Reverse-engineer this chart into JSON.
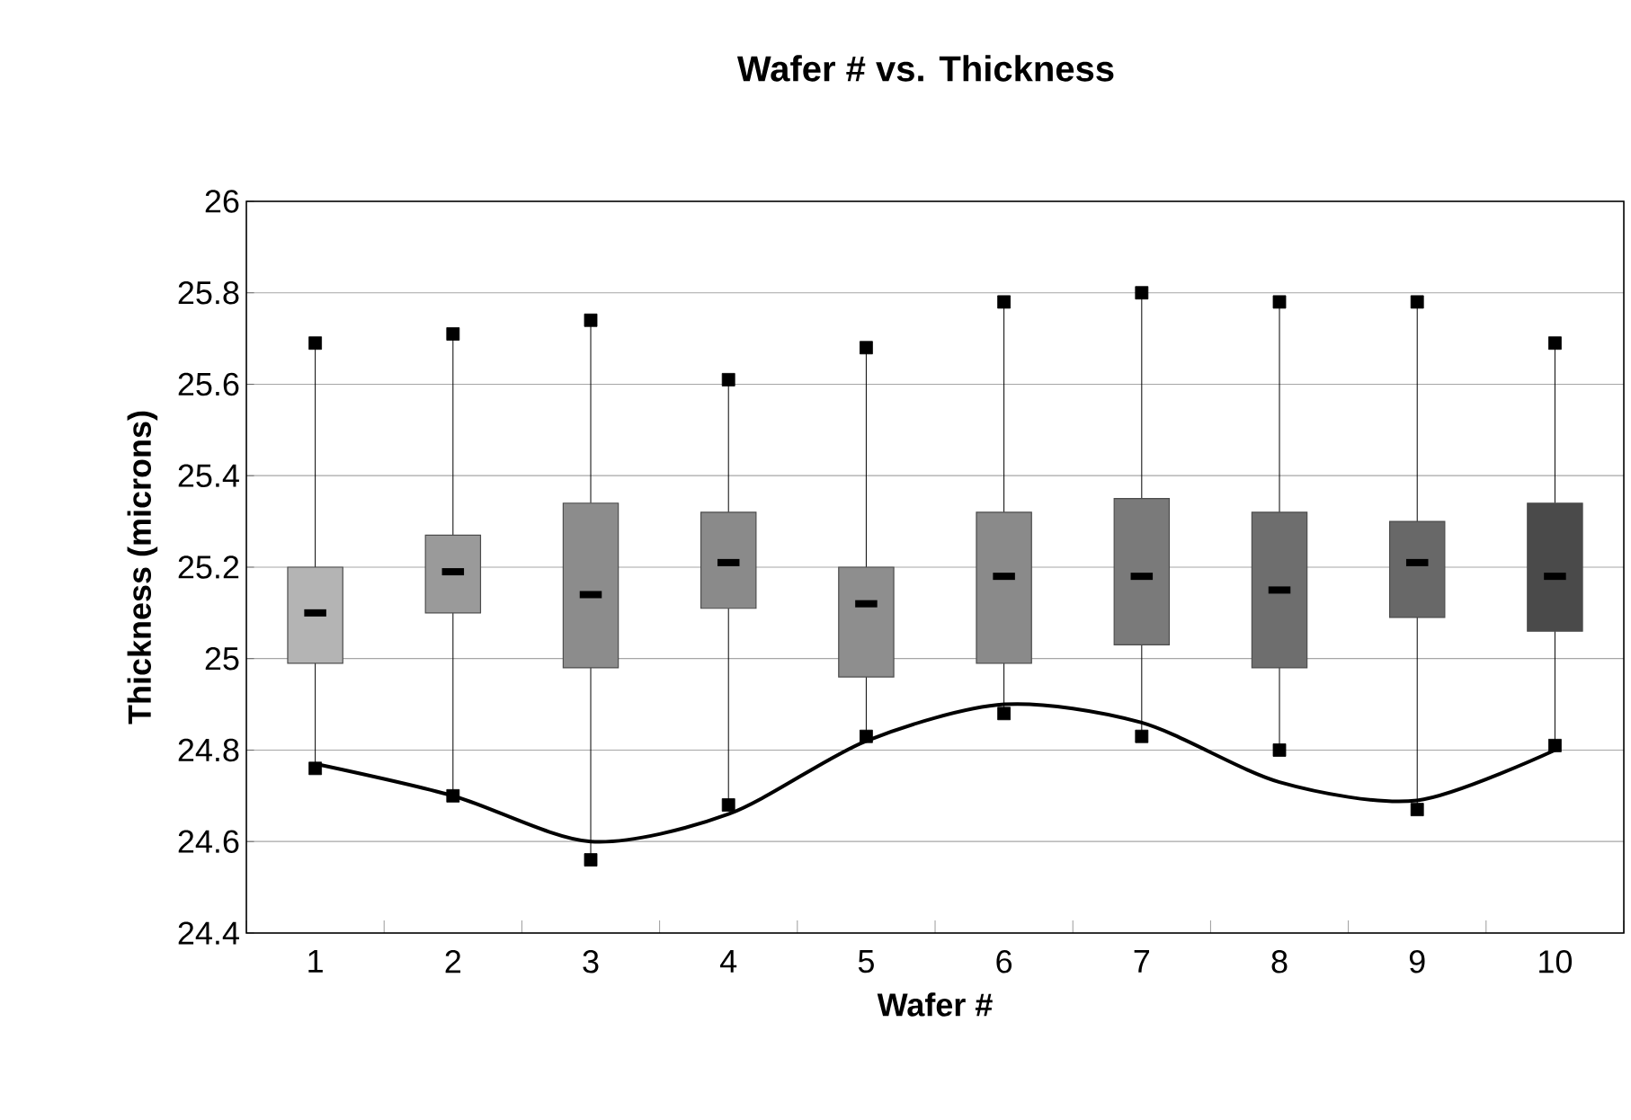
{
  "chart_data": {
    "type": "box",
    "title": "Wafer # vs. Thickness",
    "xlabel": "Wafer #",
    "ylabel": "Thickness (microns)",
    "categories": [
      "1",
      "2",
      "3",
      "4",
      "5",
      "6",
      "7",
      "8",
      "9",
      "10"
    ],
    "ylim": [
      24.4,
      26
    ],
    "yticks": [
      24.4,
      24.6,
      24.8,
      25,
      25.2,
      25.4,
      25.6,
      25.8,
      26
    ],
    "grid": "y",
    "series": [
      {
        "colors": [
          "#b4b4b4",
          "#9a9a9a",
          "#8c8c8c",
          "#8a8a8a",
          "#8e8e8e",
          "#8a8a8a",
          "#7a7a7a",
          "#6e6e6e",
          "#686868",
          "#4a4a4a"
        ],
        "boxes": [
          {
            "low": 24.76,
            "q1": 24.99,
            "median": 25.1,
            "q3": 25.2,
            "high": 25.69
          },
          {
            "low": 24.7,
            "q1": 25.1,
            "median": 25.19,
            "q3": 25.27,
            "high": 25.71
          },
          {
            "low": 24.56,
            "q1": 24.98,
            "median": 25.14,
            "q3": 25.34,
            "high": 25.74
          },
          {
            "low": 24.68,
            "q1": 25.11,
            "median": 25.21,
            "q3": 25.32,
            "high": 25.61
          },
          {
            "low": 24.83,
            "q1": 24.96,
            "median": 25.12,
            "q3": 25.2,
            "high": 25.68
          },
          {
            "low": 24.88,
            "q1": 24.99,
            "median": 25.18,
            "q3": 25.32,
            "high": 25.78
          },
          {
            "low": 24.83,
            "q1": 25.03,
            "median": 25.18,
            "q3": 25.35,
            "high": 25.8
          },
          {
            "low": 24.8,
            "q1": 24.98,
            "median": 25.15,
            "q3": 25.32,
            "high": 25.78
          },
          {
            "low": 24.67,
            "q1": 25.09,
            "median": 25.21,
            "q3": 25.3,
            "high": 25.78
          },
          {
            "low": 24.81,
            "q1": 25.06,
            "median": 25.18,
            "q3": 25.34,
            "high": 25.69
          }
        ]
      },
      {
        "type": "scatter",
        "marker": "square",
        "color": "#000000",
        "x": [
          "1",
          "2",
          "3",
          "4",
          "5",
          "6",
          "7",
          "8",
          "9",
          "10"
        ],
        "values": [
          25.69,
          25.71,
          25.74,
          25.61,
          25.68,
          25.78,
          25.8,
          25.78,
          25.78,
          25.69
        ]
      },
      {
        "type": "scatter",
        "marker": "square",
        "color": "#000000",
        "x": [
          "1",
          "2",
          "3",
          "4",
          "5",
          "6",
          "7",
          "8",
          "9",
          "10"
        ],
        "values": [
          24.76,
          24.7,
          24.56,
          24.68,
          24.83,
          24.88,
          24.83,
          24.8,
          24.67,
          24.81
        ]
      },
      {
        "type": "line",
        "color": "#000000",
        "values": [
          24.77,
          24.7,
          24.6,
          24.66,
          24.82,
          24.9,
          24.86,
          24.73,
          24.69,
          24.8
        ]
      }
    ]
  }
}
